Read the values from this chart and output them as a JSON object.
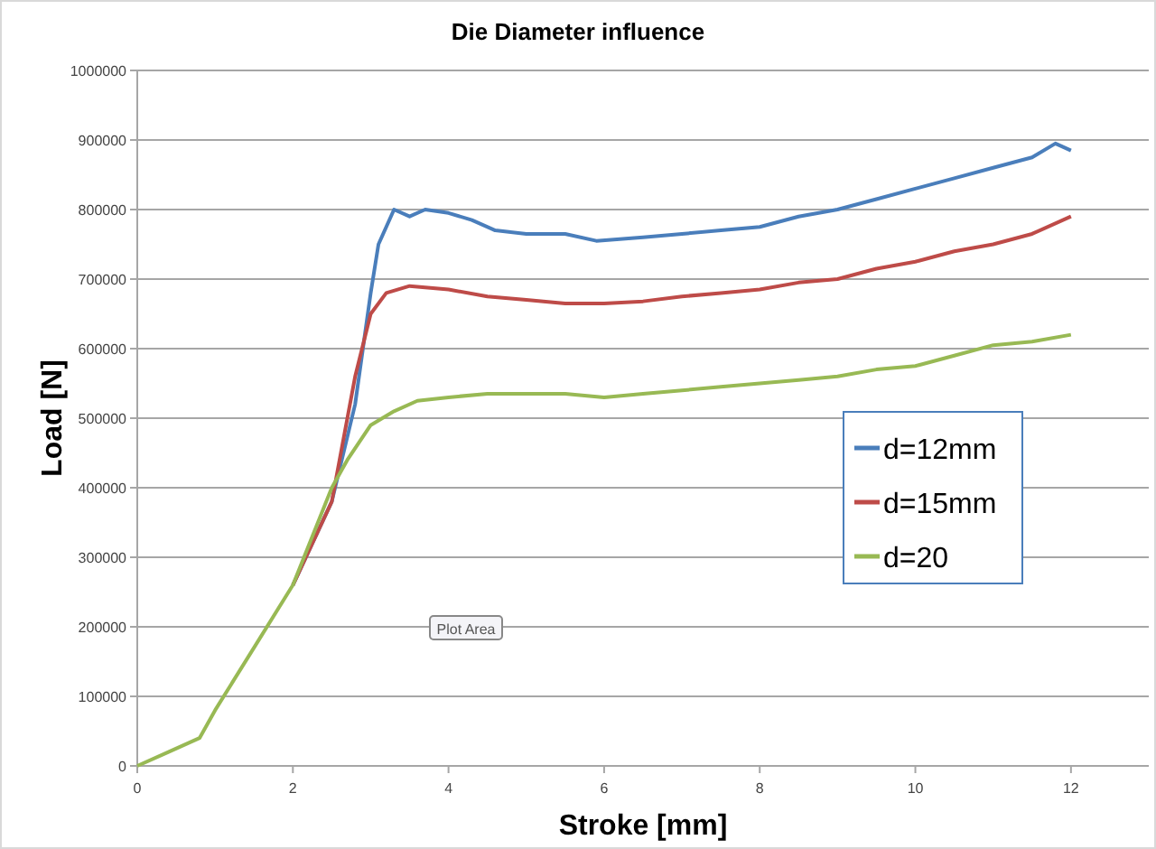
{
  "chart_data": {
    "type": "line",
    "title": "Die Diameter influence",
    "xlabel": "Stroke [mm]",
    "ylabel": "Load [N]",
    "xlim": [
      0,
      13
    ],
    "xticks": [
      0,
      2,
      4,
      6,
      8,
      10,
      12
    ],
    "ylim": [
      0,
      1000000
    ],
    "yticks": [
      0,
      100000,
      200000,
      300000,
      400000,
      500000,
      600000,
      700000,
      800000,
      900000,
      1000000
    ],
    "grid": "y",
    "legend": "right",
    "marker": "none",
    "line_style": "solid",
    "annotations": [
      "Plot Area"
    ],
    "series": [
      {
        "name": "d=12mm",
        "color": "#4a7ebb",
        "x": [
          2,
          2.5,
          2.8,
          3,
          3.1,
          3.3,
          3.5,
          3.7,
          4,
          4.3,
          4.6,
          5,
          5.5,
          5.9,
          6.5,
          7,
          7.5,
          8,
          8.5,
          9,
          9.5,
          10,
          10.5,
          11,
          11.5,
          11.8,
          12
        ],
        "values": [
          260000,
          380000,
          520000,
          680000,
          750000,
          800000,
          790000,
          800000,
          795000,
          785000,
          770000,
          765000,
          765000,
          755000,
          760000,
          765000,
          770000,
          775000,
          790000,
          800000,
          815000,
          830000,
          845000,
          860000,
          875000,
          895000,
          885000
        ]
      },
      {
        "name": "d=15mm",
        "color": "#be4b48",
        "x": [
          2,
          2.5,
          2.8,
          3,
          3.2,
          3.5,
          4,
          4.5,
          5,
          5.5,
          6,
          6.5,
          7,
          7.5,
          8,
          8.5,
          9,
          9.5,
          10,
          10.5,
          11,
          11.5,
          12
        ],
        "values": [
          260000,
          380000,
          560000,
          650000,
          680000,
          690000,
          685000,
          675000,
          670000,
          665000,
          665000,
          668000,
          675000,
          680000,
          685000,
          695000,
          700000,
          715000,
          725000,
          740000,
          750000,
          765000,
          790000
        ]
      },
      {
        "name": "d=20",
        "color": "#98b954",
        "x": [
          0,
          0.4,
          0.8,
          1,
          1.5,
          2,
          2.5,
          2.7,
          3,
          3.3,
          3.6,
          4,
          4.5,
          5,
          5.5,
          6,
          6.5,
          7,
          7.5,
          8,
          8.5,
          9,
          9.5,
          10,
          10.5,
          11,
          11.5,
          12
        ],
        "values": [
          0,
          20000,
          40000,
          80000,
          170000,
          260000,
          400000,
          440000,
          490000,
          510000,
          525000,
          530000,
          535000,
          535000,
          535000,
          530000,
          535000,
          540000,
          545000,
          550000,
          555000,
          560000,
          570000,
          575000,
          590000,
          605000,
          610000,
          620000
        ]
      }
    ]
  }
}
